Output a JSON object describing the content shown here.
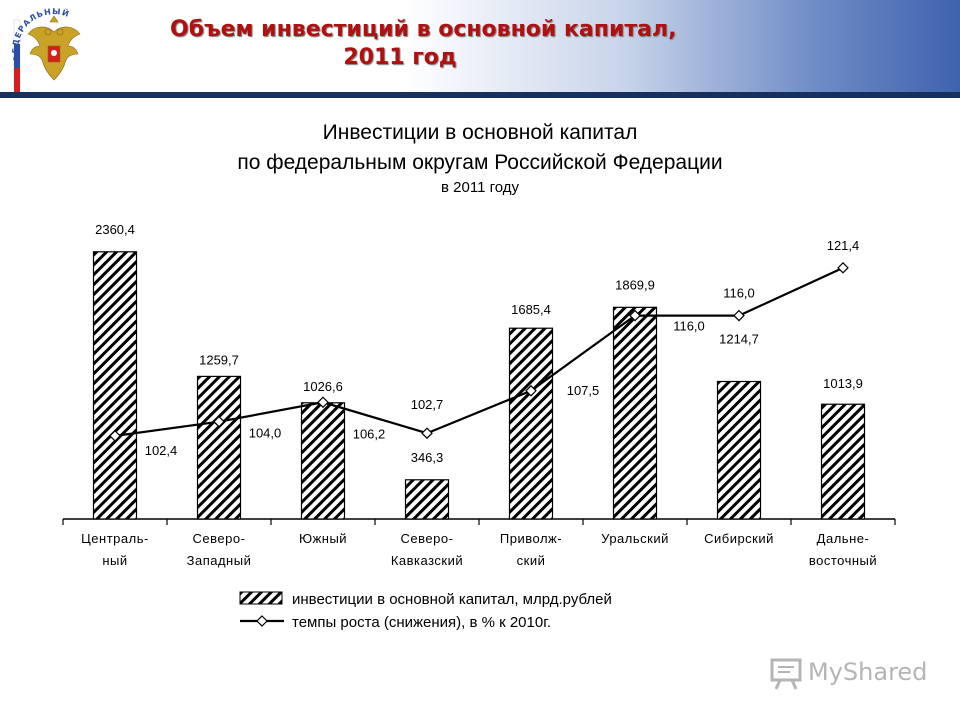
{
  "header": {
    "title_line1": "Объем инвестиций в основной капитал,",
    "title_line2": "2011 год",
    "emblem_icon": "coat-of-arms-emblem",
    "emblem_text": "ФЕДЕРАЛЬНЫЙ"
  },
  "colors": {
    "header_title": "#b01010",
    "header_bar": "#17305e",
    "bar_fill": "#ffffff",
    "bar_hatch": "#000000",
    "line": "#000000"
  },
  "chart_data": {
    "type": "bar",
    "title_line1": "Инвестиции в основной капитал",
    "title_line2": "по федеральным округам Российской Федерации",
    "subtitle": "в 2011 году",
    "categories": [
      [
        "Централь-",
        "ный"
      ],
      [
        "Северо-",
        "Западный"
      ],
      [
        "Южный"
      ],
      [
        "Северо-",
        "Кавказский"
      ],
      [
        "Приволж-",
        "ский"
      ],
      [
        "Уральский"
      ],
      [
        "Сибирский"
      ],
      [
        "Дальне-",
        "восточный"
      ]
    ],
    "series": [
      {
        "name": "инвестиции в основной капитал, млрд.рублей",
        "type": "bar",
        "values": [
          2360.4,
          1259.7,
          1026.6,
          346.3,
          1685.4,
          1869.9,
          1214.7,
          1013.9
        ],
        "labels": [
          "2360,4",
          "1259,7",
          "1026,6",
          "346,3",
          "1685,4",
          "1869,9",
          "1214,7",
          "1013,9"
        ]
      },
      {
        "name": "темпы роста (снижения), в % к 2010г.",
        "type": "line",
        "values": [
          102.4,
          104.0,
          106.2,
          102.7,
          107.5,
          116.0,
          116.0,
          121.4
        ],
        "labels": [
          "102,4",
          "104,0",
          "106,2",
          "102,7",
          "107,5",
          "116,0",
          "116,0",
          "121,4"
        ]
      }
    ],
    "bar_ylim": [
      0,
      2500
    ],
    "line_ylim": [
      93,
      125
    ],
    "grid": false,
    "legend_position": "bottom",
    "marker": "diamond"
  },
  "watermark": {
    "text": "MyShared",
    "icon": "presentation-board-icon"
  }
}
